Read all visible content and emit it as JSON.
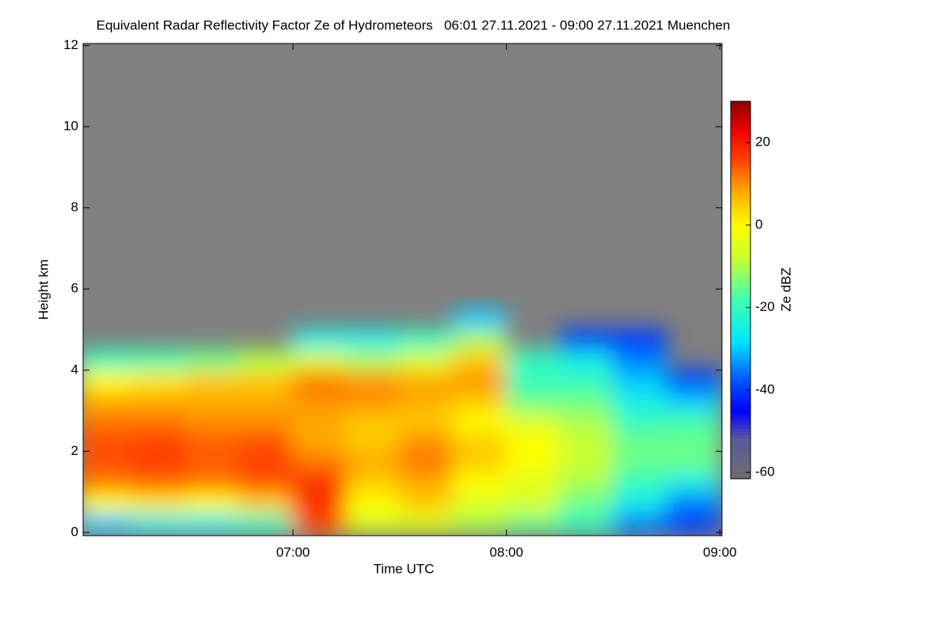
{
  "chart_data": {
    "type": "heatmap",
    "title": "Equivalent Radar Reflectivity Factor Ze of Hydrometeors   06:01 27.11.2021 - 09:00 27.11.2021 Muenchen",
    "x_label": "Time UTC",
    "y_label": "Height km",
    "colorbar_label": "Ze dBZ",
    "xlim": [
      6.0167,
      9.01
    ],
    "xticks": [
      {
        "value": 7,
        "label": "07:00"
      },
      {
        "value": 8,
        "label": "08:00"
      },
      {
        "value": 9,
        "label": "09:00"
      }
    ],
    "ylim": [
      -0.08,
      12.05
    ],
    "yticks": [
      0,
      2,
      4,
      6,
      8,
      10,
      12
    ],
    "clim": [
      -61.5,
      30
    ],
    "cticks": [
      20,
      0,
      -20,
      -40,
      -60
    ],
    "background": "#808080",
    "colorscale": [
      [
        -61.5,
        "#6e6e6e"
      ],
      [
        -52,
        "#5a5aa0"
      ],
      [
        -45,
        "#0000ff"
      ],
      [
        -38,
        "#0050ff"
      ],
      [
        -28,
        "#00e8ff"
      ],
      [
        -18,
        "#40ffb0"
      ],
      [
        -8,
        "#c8ff30"
      ],
      [
        0,
        "#ffff00"
      ],
      [
        8,
        "#ffaa00"
      ],
      [
        16,
        "#ff4000"
      ],
      [
        23,
        "#f00000"
      ],
      [
        30,
        "#8c0000"
      ]
    ],
    "x": [
      6.125,
      6.375,
      6.625,
      6.875,
      7.125,
      7.375,
      7.625,
      7.875,
      8.125,
      8.375,
      8.625,
      8.875
    ],
    "y": [
      0.25,
      0.75,
      1.25,
      1.75,
      2.25,
      2.75,
      3.25,
      3.75,
      4.25,
      4.75,
      5.25
    ],
    "z": [
      [
        -30,
        -25,
        -25,
        -20,
        15,
        -5,
        -5,
        -10,
        -15,
        -20,
        -35,
        -40
      ],
      [
        0,
        2,
        0,
        5,
        18,
        0,
        5,
        -5,
        -5,
        -15,
        -25,
        -35
      ],
      [
        12,
        14,
        12,
        15,
        18,
        5,
        8,
        0,
        -5,
        -10,
        -20,
        -25
      ],
      [
        15,
        16,
        14,
        16,
        12,
        8,
        12,
        5,
        0,
        -8,
        -15,
        -15
      ],
      [
        15,
        16,
        14,
        15,
        8,
        5,
        10,
        5,
        0,
        -8,
        -15,
        -15
      ],
      [
        12,
        12,
        10,
        10,
        8,
        5,
        5,
        0,
        -5,
        -10,
        -20,
        -18
      ],
      [
        8,
        8,
        8,
        8,
        10,
        10,
        8,
        5,
        -15,
        -15,
        -25,
        -30
      ],
      [
        0,
        2,
        5,
        5,
        12,
        10,
        8,
        10,
        -20,
        -20,
        -30,
        -40
      ],
      [
        -20,
        -18,
        -15,
        -10,
        -5,
        -10,
        -5,
        5,
        -20,
        -25,
        -35,
        null
      ],
      [
        null,
        null,
        null,
        null,
        -25,
        -25,
        -20,
        -10,
        null,
        -40,
        -40,
        null
      ],
      [
        null,
        null,
        null,
        null,
        null,
        null,
        null,
        -30,
        null,
        null,
        null,
        null
      ]
    ]
  }
}
